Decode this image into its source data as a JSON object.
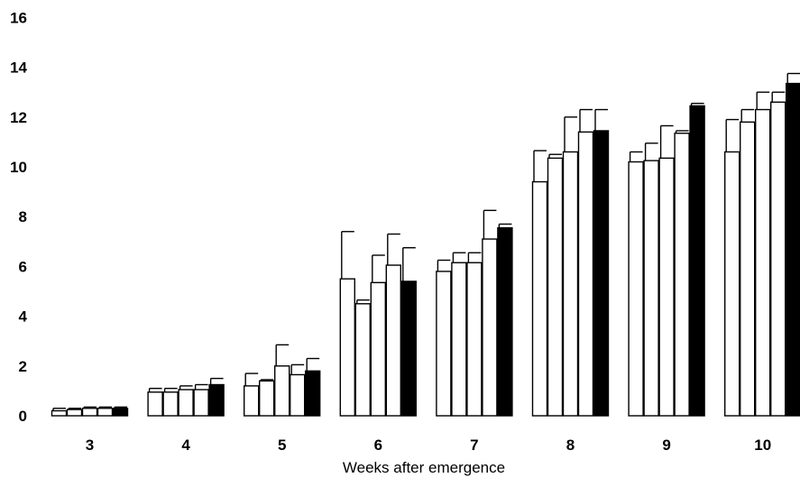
{
  "chart_data": {
    "type": "bar",
    "title": "",
    "xlabel": "Weeks after emergence",
    "ylabel": "",
    "ylim": [
      0,
      16
    ],
    "yticks": [
      0,
      2,
      4,
      6,
      8,
      10,
      12,
      14,
      16
    ],
    "categories": [
      "3",
      "4",
      "5",
      "6",
      "7",
      "8",
      "9",
      "10"
    ],
    "grid": false,
    "legend": "none",
    "series": [
      {
        "fill": "#ffffff",
        "values": [
          0.2,
          0.95,
          1.2,
          5.5,
          5.8,
          9.4,
          10.2,
          10.6
        ],
        "errors": [
          0.1,
          0.15,
          0.5,
          1.9,
          0.45,
          1.25,
          0.4,
          1.3
        ]
      },
      {
        "fill": "#ffffff",
        "values": [
          0.25,
          0.95,
          1.4,
          4.5,
          6.15,
          10.35,
          10.25,
          11.8
        ],
        "errors": [
          0.05,
          0.15,
          0.05,
          0.15,
          0.4,
          0.15,
          0.7,
          0.5
        ]
      },
      {
        "fill": "#ffffff",
        "values": [
          0.3,
          1.05,
          2.0,
          5.35,
          6.15,
          10.6,
          10.35,
          12.3
        ],
        "errors": [
          0.05,
          0.15,
          0.85,
          1.1,
          0.4,
          1.4,
          1.3,
          0.7
        ]
      },
      {
        "fill": "#ffffff",
        "values": [
          0.3,
          1.05,
          1.65,
          6.05,
          7.1,
          11.4,
          11.35,
          12.6
        ],
        "errors": [
          0.05,
          0.2,
          0.4,
          1.25,
          1.15,
          0.9,
          0.1,
          0.4
        ]
      },
      {
        "fill": "#000000",
        "values": [
          0.3,
          1.25,
          1.8,
          5.4,
          7.55,
          11.45,
          12.45,
          13.35
        ],
        "errors": [
          0.05,
          0.25,
          0.5,
          1.35,
          0.15,
          0.85,
          0.1,
          0.4
        ]
      }
    ]
  }
}
